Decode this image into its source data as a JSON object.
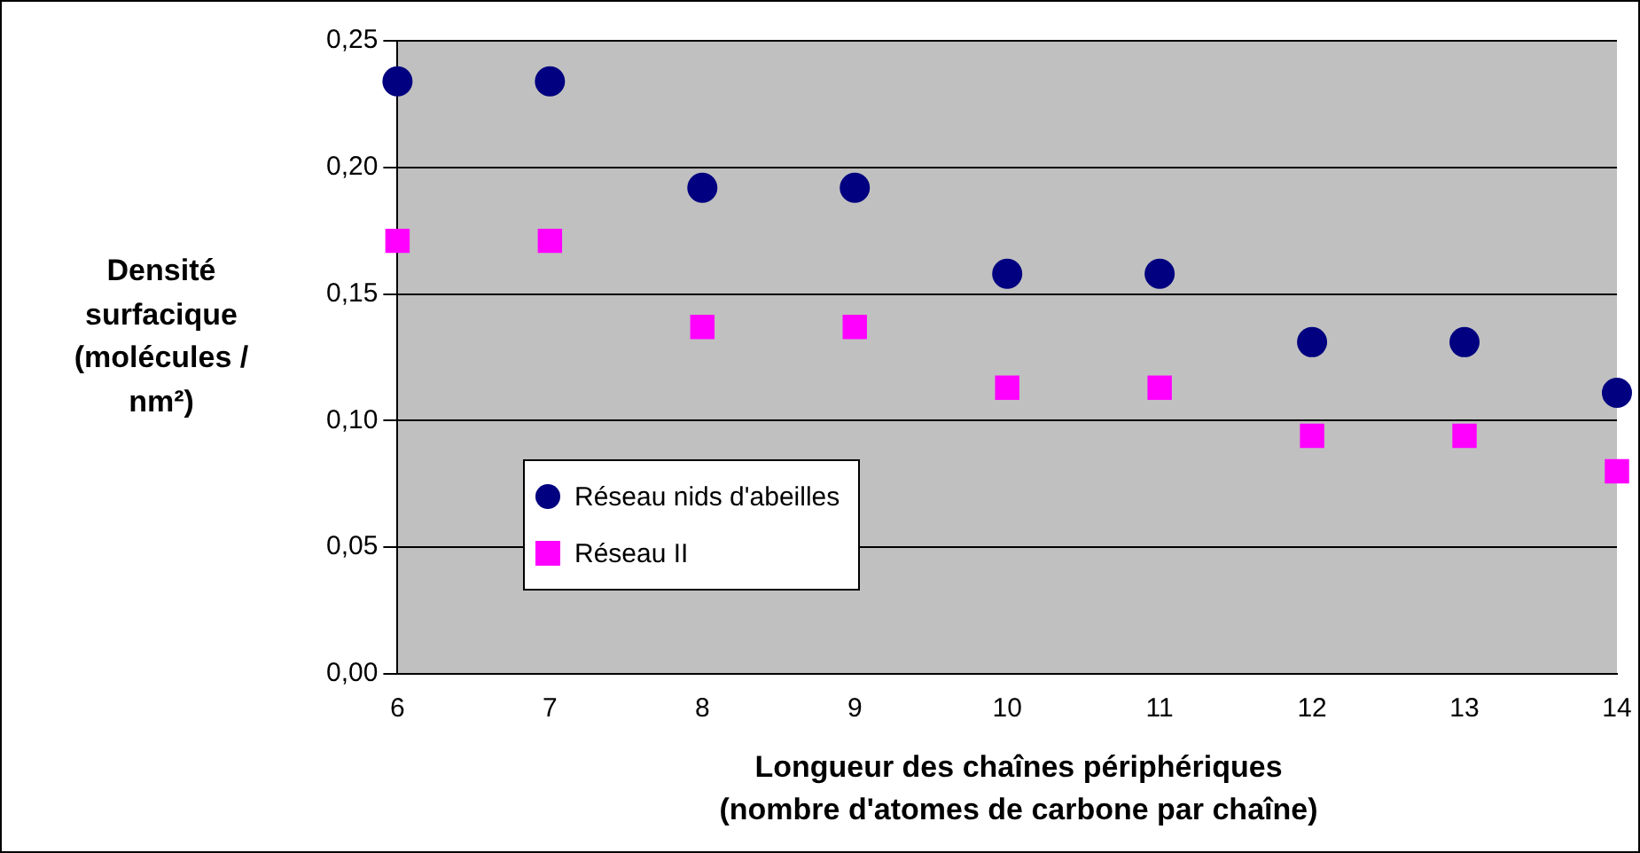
{
  "chart_data": {
    "type": "scatter",
    "xlabel": "Longueur des chaînes périphériques\n(nombre d'atomes de carbone par chaîne)",
    "ylabel": "Densité\nsurfacique\n(molécules /\nnm²)",
    "x": [
      6,
      7,
      8,
      9,
      10,
      11,
      12,
      13,
      14
    ],
    "series": [
      {
        "name": "Réseau nids d'abeilles",
        "color": "#000080",
        "marker": "circle",
        "values": [
          0.234,
          0.234,
          0.192,
          0.192,
          0.158,
          0.158,
          0.131,
          0.131,
          0.111
        ]
      },
      {
        "name": "Réseau II",
        "color": "#ff00ff",
        "marker": "square",
        "values": [
          0.171,
          0.171,
          0.137,
          0.137,
          0.113,
          0.113,
          0.094,
          0.094,
          0.08
        ]
      }
    ],
    "xlim": [
      6,
      14
    ],
    "xticks": [
      6,
      7,
      8,
      9,
      10,
      11,
      12,
      13,
      14
    ],
    "ylim": [
      0,
      0.25
    ],
    "yticks": [
      {
        "value": 0,
        "label": "0,00"
      },
      {
        "value": 0.05,
        "label": "0,05"
      },
      {
        "value": 0.1,
        "label": "0,10"
      },
      {
        "value": 0.15,
        "label": "0,15"
      },
      {
        "value": 0.2,
        "label": "0,20"
      },
      {
        "value": 0.25,
        "label": "0,25"
      }
    ],
    "grid": "y",
    "legend": "bottom left"
  }
}
